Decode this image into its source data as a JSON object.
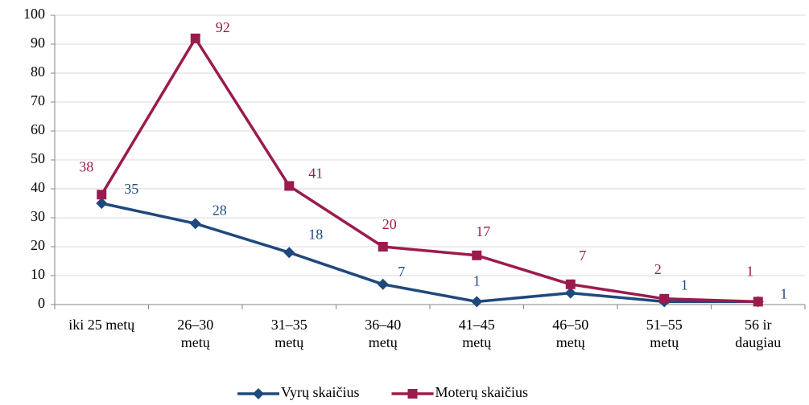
{
  "chart_data": {
    "type": "line",
    "categories": [
      "iki 25 metų",
      "26–30\nmetų",
      "31–35\nmetų",
      "36–40\nmetų",
      "41–45\nmetų",
      "46–50\nmetų",
      "51–55\nmetų",
      "56 ir\ndaugiau"
    ],
    "series": [
      {
        "name": "Vyrų skaičius",
        "color": "#1f497d",
        "values": [
          35,
          28,
          18,
          7,
          1,
          4,
          1,
          1
        ]
      },
      {
        "name": "Moterų skaičius",
        "color": "#9b1b4e",
        "values": [
          38,
          92,
          41,
          20,
          17,
          7,
          2,
          1
        ]
      }
    ],
    "ylim": [
      0,
      100
    ],
    "yticks": [
      0,
      10,
      20,
      30,
      40,
      50,
      60,
      70,
      80,
      90,
      100
    ],
    "grid": true,
    "legend": "bottom",
    "data_labels": true
  }
}
